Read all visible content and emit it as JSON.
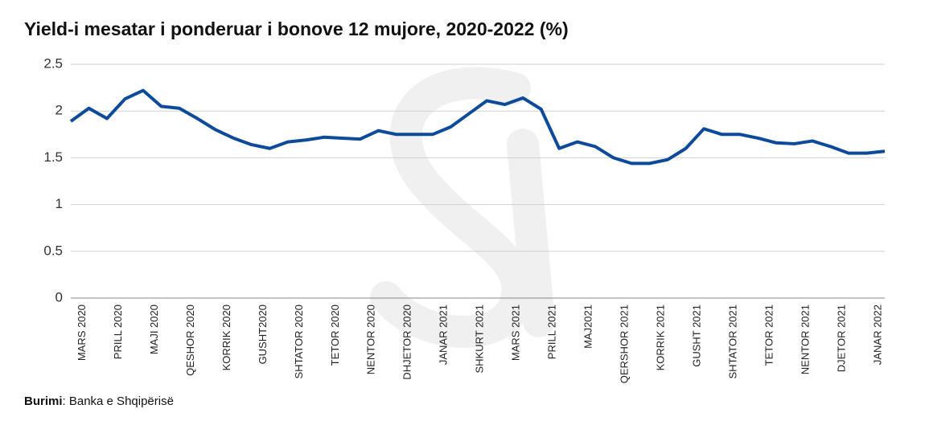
{
  "chart_data": {
    "type": "line",
    "title": "Yield-i mesatar i ponderuar i bonove 12 mujore, 2020-2022 (%)",
    "categories": [
      null,
      "MARS 2020",
      null,
      "PRILL 2020",
      null,
      "MAJI 2020",
      null,
      "QESHOR 2020",
      null,
      "KORRIK 2020",
      null,
      "GUSHT2020",
      null,
      "SHTATOR 2020",
      null,
      "TETOR 2020",
      null,
      "NENTOR 2020",
      null,
      "DHJETOR 2020",
      null,
      "JANAR 2021",
      null,
      "SHKURT 2021",
      null,
      "MARS 2021",
      null,
      "PRILL 2021",
      null,
      "MAJ2021",
      null,
      "QERSHOR 2021",
      null,
      "KORRIK 2021",
      null,
      "GUSHT 2021",
      null,
      "SHTATOR 2021",
      null,
      "TETOR 2021",
      null,
      "NENTOR 2021",
      null,
      "DJETOR 2021",
      null,
      "JANAR 2022"
    ],
    "series": [
      {
        "name": "Yield",
        "color": "#0c4a9c",
        "values": [
          1.89,
          2.03,
          1.92,
          2.13,
          2.22,
          2.05,
          2.03,
          1.92,
          1.8,
          1.71,
          1.64,
          1.6,
          1.67,
          1.69,
          1.72,
          1.71,
          1.7,
          1.79,
          1.75,
          1.75,
          1.75,
          1.83,
          1.97,
          2.11,
          2.07,
          2.14,
          2.02,
          1.6,
          1.67,
          1.62,
          1.5,
          1.44,
          1.44,
          1.48,
          1.6,
          1.81,
          1.75,
          1.75,
          1.71,
          1.66,
          1.65,
          1.68,
          1.62,
          1.55,
          1.55,
          1.57
        ]
      }
    ],
    "ylim": [
      0,
      2.5
    ],
    "yticks": [
      0,
      0.5,
      1,
      1.5,
      2,
      2.5
    ],
    "grid": true,
    "source": {
      "label": "Burimi",
      "text": ": Banka e Shqipërisë"
    }
  }
}
